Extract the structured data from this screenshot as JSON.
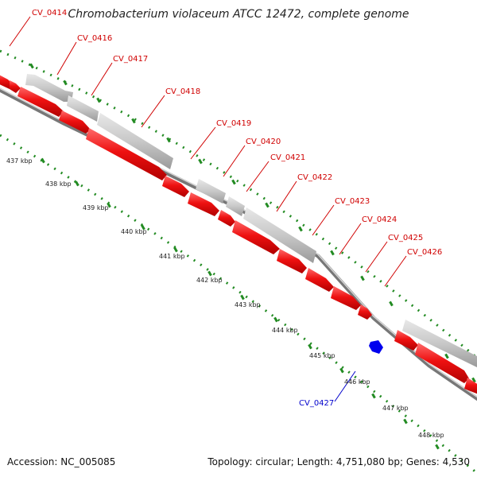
{
  "title": "Chromobacterium violaceum ATCC 12472, complete genome",
  "accession_text": "Accession: NC_005085",
  "summary_text": "Topology: circular; Length: 4,751,080 bp; Genes: 4,530",
  "colors": {
    "forward_cds": "#ee1111",
    "gene_block": "#c8c8c8",
    "backbone": "#888888",
    "dots": "#228b22",
    "label_red": "#d00000",
    "label_blue": "#0000cc",
    "blue_feature": "#0000ee"
  },
  "genes": [
    {
      "name": "CV_0414",
      "strand": "forward"
    },
    {
      "name": "CV_0416",
      "strand": "forward"
    },
    {
      "name": "CV_0417",
      "strand": "forward"
    },
    {
      "name": "CV_0418",
      "strand": "forward"
    },
    {
      "name": "CV_0419",
      "strand": "forward"
    },
    {
      "name": "CV_0420",
      "strand": "forward"
    },
    {
      "name": "CV_0421",
      "strand": "forward"
    },
    {
      "name": "CV_0422",
      "strand": "forward"
    },
    {
      "name": "CV_0423",
      "strand": "forward"
    },
    {
      "name": "CV_0424",
      "strand": "forward"
    },
    {
      "name": "CV_0425",
      "strand": "forward"
    },
    {
      "name": "CV_0426",
      "strand": "forward"
    },
    {
      "name": "CV_0427",
      "strand": "reverse"
    }
  ],
  "kbp_ticks": [
    "437 kbp",
    "438 kbp",
    "439 kbp",
    "440 kbp",
    "441 kbp",
    "442 kbp",
    "443 kbp",
    "444 kbp",
    "445 kbp",
    "446 kbp",
    "447 kbp",
    "448 kbp"
  ]
}
